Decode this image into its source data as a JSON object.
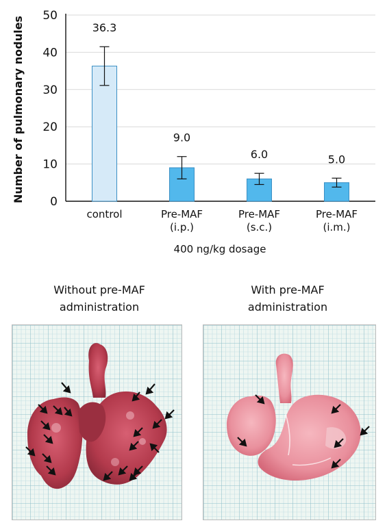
{
  "chart_data": {
    "type": "bar",
    "categories": [
      [
        "control"
      ],
      [
        "Pre-MAF",
        "(i.p.)"
      ],
      [
        "Pre-MAF",
        "(s.c.)"
      ],
      [
        "Pre-MAF",
        "(i.m.)"
      ]
    ],
    "values": [
      36.3,
      9.0,
      6.0,
      5.0
    ],
    "value_labels": [
      "36.3",
      "9.0",
      "6.0",
      "5.0"
    ],
    "errors": [
      5.2,
      3.0,
      1.5,
      1.2
    ],
    "bar_colors": [
      "#d6eaf8",
      "#52b8ec",
      "#52b8ec",
      "#52b8ec"
    ],
    "bar_stroke": "#3a8fc4",
    "ylabel": "Number of pulmonary nodules",
    "xlabel": "400 ng/kg dosage",
    "ylim": [
      0,
      50
    ],
    "yticks": [
      0,
      10,
      20,
      30,
      40,
      50
    ],
    "grid": true,
    "grid_color": "#d9d9d9"
  },
  "photos": [
    {
      "caption_line1": "Without pre-MAF",
      "caption_line2": "administration"
    },
    {
      "caption_line1": "With pre-MAF",
      "caption_line2": "administration"
    }
  ],
  "colors": {
    "grid_paper": "#eef6f2",
    "grid_line": "#9fc9d2",
    "tissue_dark": "#b33a4c",
    "tissue_light": "#e9909d",
    "arrow": "#111111"
  }
}
